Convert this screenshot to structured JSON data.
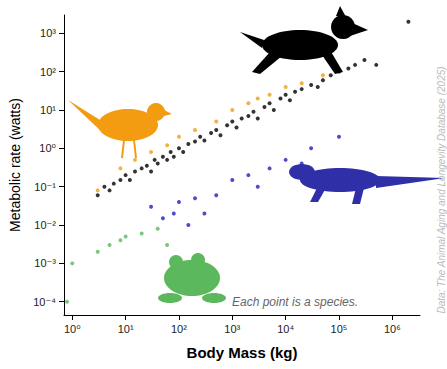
{
  "chart_data": {
    "type": "scatter",
    "x_label": "Body Mass (kg)",
    "y_label": "Metabolic rate (watts)",
    "annotation": "Each point is a species.",
    "source": "Data: The Animal Aging and Longevity Database (2025)",
    "log": true,
    "grid": false,
    "marker": "circle",
    "xlim": [
      0.7,
      3300000
    ],
    "ylim": [
      4.5e-05,
      3000
    ],
    "xticks": [
      {
        "value": 1,
        "label": "10⁰"
      },
      {
        "value": 10,
        "label": "10¹"
      },
      {
        "value": 100,
        "label": "10²"
      },
      {
        "value": 1000,
        "label": "10³"
      },
      {
        "value": 10000,
        "label": "10⁴"
      },
      {
        "value": 100000,
        "label": "10⁵"
      },
      {
        "value": 1000000,
        "label": "10⁶"
      }
    ],
    "yticks": [
      {
        "value": 0.0001,
        "label": "10⁻⁴"
      },
      {
        "value": 0.001,
        "label": "10⁻³"
      },
      {
        "value": 0.01,
        "label": "10⁻²"
      },
      {
        "value": 0.1,
        "label": "10⁻¹"
      },
      {
        "value": 1,
        "label": "10⁰"
      },
      {
        "value": 10,
        "label": "10¹"
      },
      {
        "value": 100,
        "label": "10²"
      },
      {
        "value": 1000,
        "label": "10³"
      }
    ],
    "series": [
      {
        "color": "#000000",
        "x": [
          3,
          4,
          5,
          6,
          8,
          10,
          12,
          15,
          20,
          25,
          30,
          35,
          40,
          50,
          60,
          70,
          80,
          100,
          120,
          150,
          200,
          250,
          300,
          400,
          500,
          600,
          800,
          1000,
          1200,
          1500,
          2000,
          2500,
          3000,
          4000,
          5000,
          6000,
          8000,
          10000,
          12000,
          15000,
          20000,
          30000,
          40000,
          50000,
          70000,
          100000,
          150000,
          200000,
          300000,
          500000,
          2000000
        ],
        "values": [
          0.06,
          0.1,
          0.08,
          0.12,
          0.15,
          0.2,
          0.15,
          0.25,
          0.3,
          0.35,
          0.25,
          0.5,
          0.4,
          0.6,
          0.5,
          0.8,
          0.6,
          1,
          0.8,
          1.3,
          1.5,
          2,
          1.6,
          2.5,
          3,
          2.2,
          4,
          5,
          3.5,
          6,
          7,
          9,
          6,
          12,
          15,
          10,
          20,
          25,
          18,
          30,
          35,
          45,
          40,
          60,
          80,
          100,
          120,
          150,
          200,
          150,
          2000
        ]
      },
      {
        "color": "#f39c12",
        "x": [
          3,
          8,
          15,
          30,
          60,
          100,
          200,
          500,
          1000,
          2000,
          3000,
          5000,
          10000,
          20000,
          50000
        ],
        "values": [
          0.08,
          0.3,
          0.5,
          0.8,
          1.2,
          2,
          3,
          5,
          10,
          15,
          20,
          25,
          40,
          50,
          80
        ]
      },
      {
        "color": "#1f1fbf",
        "x": [
          30,
          50,
          80,
          100,
          150,
          200,
          300,
          500,
          1000,
          2000,
          3000,
          5000,
          10000,
          20000,
          30000,
          100000
        ],
        "values": [
          0.03,
          0.015,
          0.02,
          0.04,
          0.01,
          0.05,
          0.02,
          0.06,
          0.15,
          0.2,
          0.1,
          0.3,
          0.5,
          0.4,
          1,
          2
        ]
      },
      {
        "color": "#5cb85c",
        "x": [
          0.8,
          1,
          3,
          5,
          8,
          10,
          20,
          40,
          60
        ],
        "values": [
          0.0001,
          0.001,
          0.002,
          0.003,
          0.004,
          0.005,
          0.006,
          0.008,
          0.003
        ]
      }
    ]
  }
}
